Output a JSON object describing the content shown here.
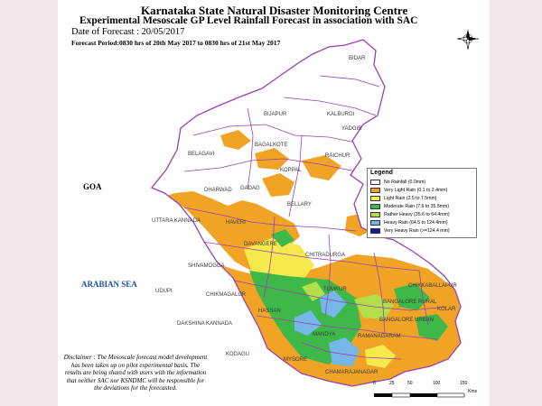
{
  "header": {
    "title": "Karnataka State Natural Disaster Monitoring Centre",
    "subtitle": "Experimental Mesoscale GP Level Rainfall Forecast in association with SAC",
    "forecast_date": "Date of Forecast : 20/05/2017",
    "forecast_period": "Forecast Period:0830 hrs of 20th May 2017  to 0830 hrs of 21st May 2017"
  },
  "map_labels": {
    "sea": "ARABIAN SEA",
    "goa": "GOA",
    "districts": [
      "BIDAR",
      "KALBURGI",
      "BIJAPUR",
      "BELAGAVI",
      "BAGALKOTE",
      "RAICHUR",
      "YADGIR",
      "KOPPAL",
      "GADAG",
      "DHARWAD",
      "HAVERI",
      "UTTARA KANNADA",
      "BELLARY",
      "DAVANGERE",
      "CHITRADURGA",
      "SHIVAMOGGA",
      "UDUPI",
      "CHIKMAGALUR",
      "TUMKUR",
      "CHIKKABALLAPUR",
      "BANGALORE RURAL",
      "KOLAR",
      "HASSAN",
      "DAKSHINA KANNADA",
      "BANGALORE URBAN",
      "KODAGU",
      "MANDYA",
      "RAMANAGARAM",
      "MYSORE",
      "CHAMARAJANAGAR"
    ]
  },
  "legend": {
    "title": "Legend",
    "items": [
      {
        "label": "No Rainfall (0.0mm)",
        "color": "#ffffff"
      },
      {
        "label": "Very Light Rain (0.1 to 2.4mm)",
        "color": "#f0a325"
      },
      {
        "label": "Light Rain (2.5 to 7.5mm)",
        "color": "#f6e94d"
      },
      {
        "label": "Moderate Rain (7.6 to 35.5mm)",
        "color": "#3fb84a"
      },
      {
        "label": "Rather Heavy (35.6 to 64.4mm)",
        "color": "#b3e04a"
      },
      {
        "label": "Heavy Rain (64.5 to 124.4mm)",
        "color": "#74b7e8"
      },
      {
        "label": "Very Heavy Rain (>=124.4 mm)",
        "color": "#1a1a9e"
      }
    ]
  },
  "disclaimer": "Disclaimer : The Mesoscale forecast model development has been taken up on pilot experimental basis. The results are being shared with users with the information that neither SAC nor KSNDMC will be responsible for the deviations for the forecasted.",
  "compass": {
    "north": "N",
    "south": "S",
    "east": "E",
    "west": "W"
  },
  "scale": {
    "ticks": [
      "0",
      "25",
      "50",
      "100",
      "150"
    ],
    "unit": "Kms"
  },
  "colors": {
    "state_fill": "#ffffff",
    "boundary": "#9b3fb3",
    "background": "#f3e6ec"
  }
}
